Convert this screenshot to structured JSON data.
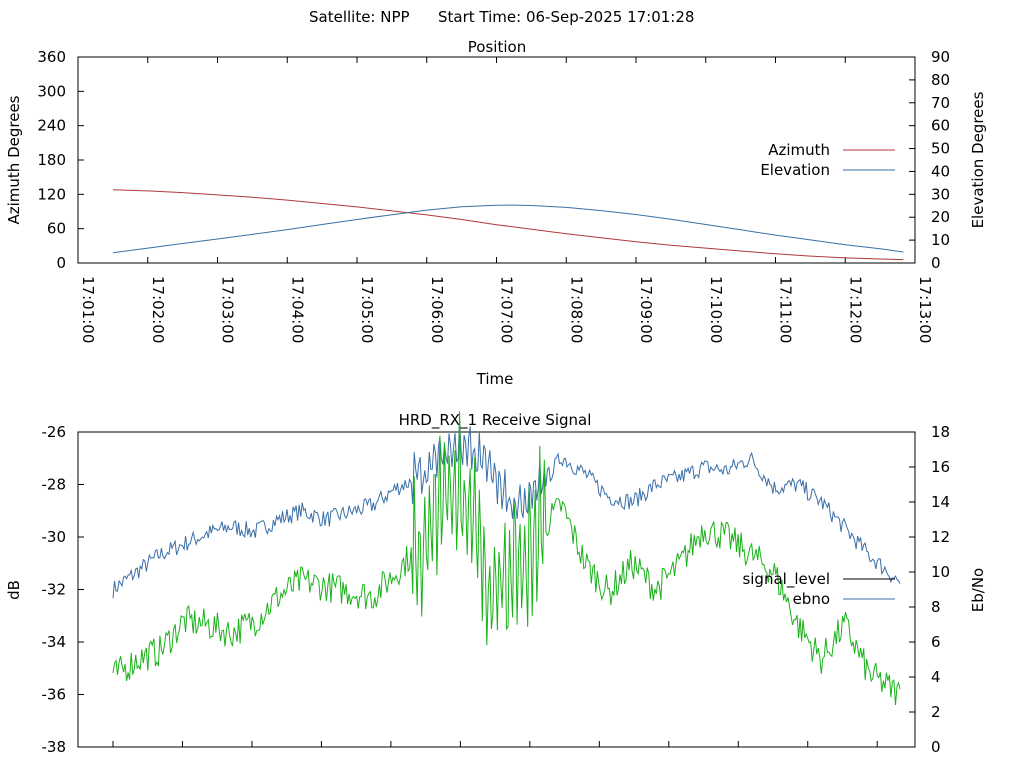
{
  "header": {
    "satellite": "Satellite: NPP",
    "start_time": "Start Time: 06-Sep-2025 17:01:28"
  },
  "chart_data": [
    {
      "type": "line",
      "title": "Position",
      "xlabel": "Time",
      "ylabel": "Azimuth Degrees",
      "y2label": "Elevation Degrees",
      "xlim": [
        "17:01:00",
        "17:13:00"
      ],
      "ylim": [
        0,
        360
      ],
      "y2lim": [
        0,
        90
      ],
      "x_ticks": [
        "17:01:00",
        "17:02:00",
        "17:03:00",
        "17:04:00",
        "17:05:00",
        "17:06:00",
        "17:07:00",
        "17:08:00",
        "17:09:00",
        "17:10:00",
        "17:11:00",
        "17:12:00",
        "17:13:00"
      ],
      "y_ticks": [
        0,
        60,
        120,
        180,
        240,
        300,
        360
      ],
      "y2_ticks": [
        0,
        10,
        20,
        30,
        40,
        50,
        60,
        70,
        80,
        90
      ],
      "legend_position": "right",
      "grid": false,
      "series": [
        {
          "name": "Azimuth",
          "axis": "left",
          "color": "#b03a3a",
          "x": [
            "17:01:30",
            "17:02:00",
            "17:02:30",
            "17:03:00",
            "17:03:30",
            "17:04:00",
            "17:04:30",
            "17:05:00",
            "17:05:30",
            "17:06:00",
            "17:06:30",
            "17:07:00",
            "17:07:30",
            "17:08:00",
            "17:08:30",
            "17:09:00",
            "17:09:30",
            "17:10:00",
            "17:10:30",
            "17:11:00",
            "17:11:30",
            "17:12:00",
            "17:12:30",
            "17:12:50"
          ],
          "values": [
            128,
            126,
            123,
            119,
            115,
            110,
            104,
            98,
            91,
            84,
            76,
            67,
            59,
            51,
            44,
            37,
            31,
            26,
            21,
            16,
            12,
            9,
            7,
            6
          ]
        },
        {
          "name": "Elevation",
          "axis": "right",
          "color": "#3a6fa8",
          "x": [
            "17:01:30",
            "17:02:00",
            "17:02:30",
            "17:03:00",
            "17:03:30",
            "17:04:00",
            "17:04:30",
            "17:05:00",
            "17:05:30",
            "17:06:00",
            "17:06:30",
            "17:07:00",
            "17:07:15",
            "17:07:30",
            "17:08:00",
            "17:08:30",
            "17:09:00",
            "17:09:30",
            "17:10:00",
            "17:10:30",
            "17:11:00",
            "17:11:30",
            "17:12:00",
            "17:12:30",
            "17:12:50"
          ],
          "values": [
            4.5,
            6.5,
            8.5,
            10.5,
            12.5,
            14.6,
            16.8,
            19.0,
            21.1,
            23.1,
            24.6,
            25.2,
            25.3,
            25.1,
            24.3,
            22.9,
            21.2,
            19.1,
            16.8,
            14.5,
            12.2,
            10.1,
            8.0,
            6.2,
            4.8
          ]
        }
      ]
    },
    {
      "type": "line",
      "title": "HRD_RX_1 Receive Signal",
      "ylabel": "dB",
      "y2label": "Eb/No",
      "ylim": [
        -38,
        -26
      ],
      "y2lim": [
        0,
        18
      ],
      "y_ticks": [
        -38,
        -36,
        -34,
        -32,
        -30,
        -28,
        -26
      ],
      "y2_ticks": [
        0,
        2,
        4,
        6,
        8,
        10,
        12,
        14,
        16,
        18
      ],
      "legend_position": "right",
      "grid": false,
      "series": [
        {
          "name": "signal_level",
          "axis": "left",
          "color": "#000000",
          "x": [],
          "values": []
        },
        {
          "name": "ebno",
          "axis": "right",
          "color": "#3a6fa8",
          "x": [
            0,
            0.03,
            0.06,
            0.09,
            0.12,
            0.15,
            0.18,
            0.21,
            0.24,
            0.27,
            0.3,
            0.33,
            0.36,
            0.39,
            0.42,
            0.45,
            0.48,
            0.51,
            0.54,
            0.57,
            0.6,
            0.63,
            0.66,
            0.69,
            0.72,
            0.75,
            0.78,
            0.81,
            0.84,
            0.87,
            0.9,
            0.93,
            0.96,
            1.0
          ],
          "values": [
            9.0,
            10.0,
            11.0,
            11.6,
            12.2,
            12.6,
            12.3,
            13.0,
            13.5,
            13.0,
            13.4,
            13.8,
            14.8,
            15.4,
            17.0,
            17.0,
            15.8,
            13.5,
            14.6,
            16.6,
            15.6,
            14.3,
            14.0,
            15.0,
            15.4,
            16.0,
            15.8,
            16.5,
            14.8,
            15.0,
            14.0,
            12.5,
            11.0,
            9.4
          ]
        },
        {
          "name": "",
          "axis": "right",
          "color": "#1ab21a",
          "x": [
            0,
            0.03,
            0.06,
            0.09,
            0.12,
            0.15,
            0.18,
            0.21,
            0.24,
            0.27,
            0.3,
            0.33,
            0.36,
            0.39,
            0.42,
            0.45,
            0.48,
            0.51,
            0.54,
            0.57,
            0.6,
            0.63,
            0.66,
            0.69,
            0.72,
            0.75,
            0.78,
            0.81,
            0.84,
            0.87,
            0.9,
            0.93,
            0.96,
            1.0
          ],
          "values": [
            4.0,
            5.0,
            5.5,
            7.2,
            7.0,
            6.5,
            7.2,
            8.6,
            9.5,
            9.2,
            8.9,
            8.6,
            10.0,
            11.6,
            14.2,
            14.6,
            9.0,
            10.0,
            12.2,
            13.8,
            10.5,
            8.8,
            10.5,
            9.0,
            10.4,
            12.5,
            12.0,
            11.0,
            10.0,
            7.0,
            5.0,
            7.0,
            4.2,
            3.0
          ]
        }
      ]
    }
  ]
}
